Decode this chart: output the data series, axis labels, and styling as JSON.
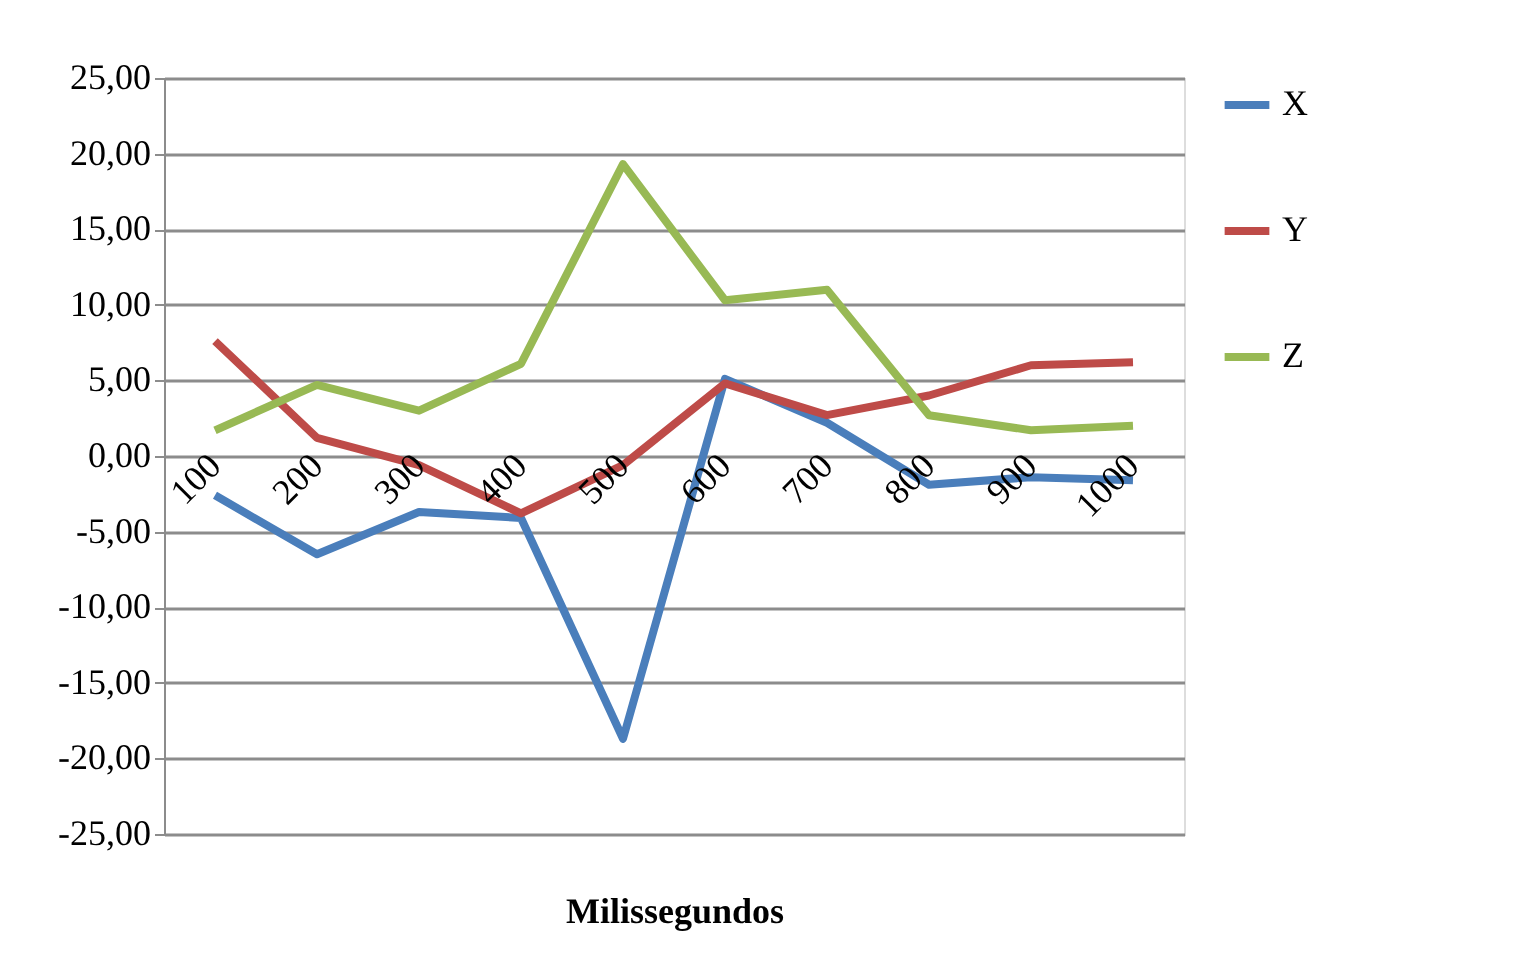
{
  "chart_data": {
    "type": "line",
    "xlabel": "Milissegundos",
    "categories": [
      "100",
      "200",
      "300",
      "400",
      "500",
      "600",
      "700",
      "800",
      "900",
      "1000"
    ],
    "series": [
      {
        "name": "X",
        "color": "#4a7ebb",
        "values": [
          -2.6,
          -6.5,
          -3.7,
          -4.1,
          -18.7,
          5.1,
          2.2,
          -1.9,
          -1.4,
          -1.6
        ]
      },
      {
        "name": "Y",
        "color": "#be4b48",
        "values": [
          7.6,
          1.2,
          -0.6,
          -3.8,
          -0.6,
          4.8,
          2.7,
          4.0,
          6.0,
          6.2
        ]
      },
      {
        "name": "Z",
        "color": "#98b954",
        "values": [
          1.7,
          4.7,
          3.0,
          6.1,
          19.3,
          10.3,
          11.0,
          2.7,
          1.7,
          2.0
        ]
      }
    ],
    "ylim": [
      -25,
      25
    ],
    "yticks": [
      {
        "value": -25,
        "label": "-25,00"
      },
      {
        "value": -20,
        "label": "-20,00"
      },
      {
        "value": -15,
        "label": "-15,00"
      },
      {
        "value": -10,
        "label": "-10,00"
      },
      {
        "value": -5,
        "label": "-5,00"
      },
      {
        "value": 0,
        "label": "0,00"
      },
      {
        "value": 5,
        "label": "5,00"
      },
      {
        "value": 10,
        "label": "10,00"
      },
      {
        "value": 15,
        "label": "15,00"
      },
      {
        "value": 20,
        "label": "20,00"
      },
      {
        "value": 25,
        "label": "25,00"
      }
    ],
    "grid": "y",
    "legend": "right",
    "marker": "none",
    "line_style": "solid"
  }
}
